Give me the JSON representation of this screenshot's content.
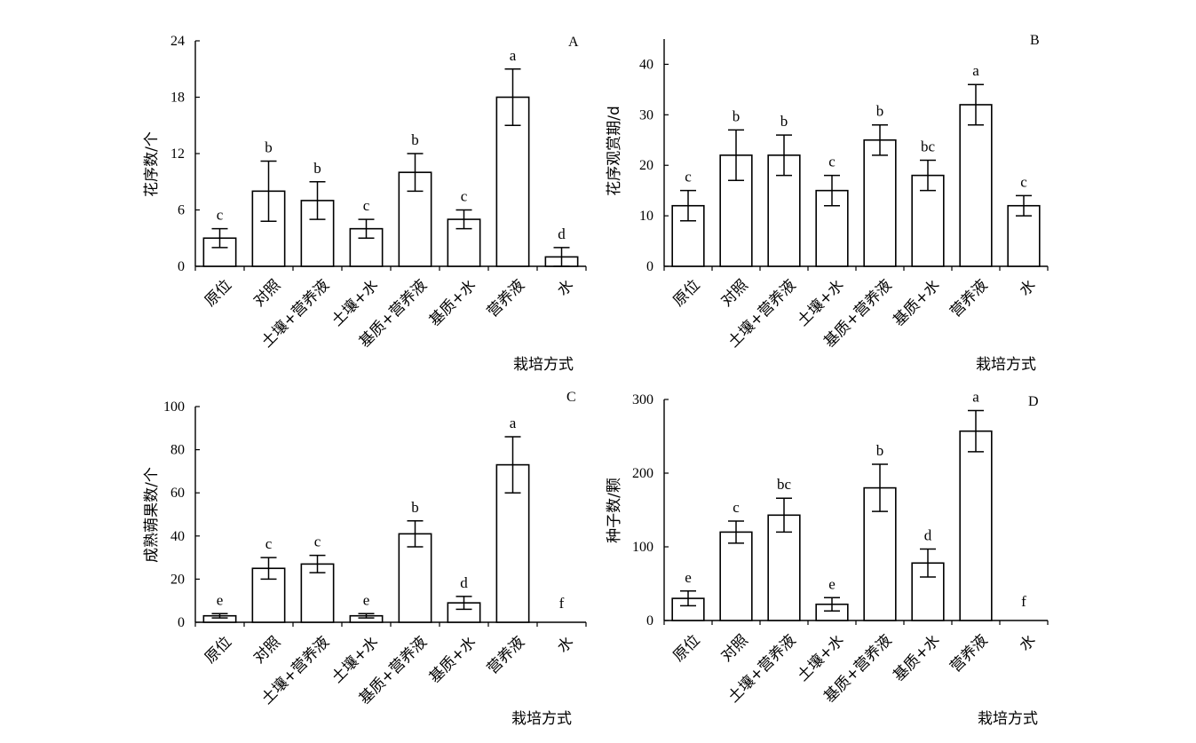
{
  "chart_data": [
    {
      "type": "bar",
      "panel": "A",
      "categories": [
        "原位",
        "对照",
        "土壤+营养液",
        "土壤+水",
        "基质+营养液",
        "基质+水",
        "营养液",
        "水"
      ],
      "values": [
        3,
        8,
        7,
        4,
        10,
        5,
        18,
        1
      ],
      "errors": [
        1,
        3.2,
        2,
        1,
        2,
        1,
        3,
        1
      ],
      "significance": [
        "c",
        "b",
        "b",
        "c",
        "b",
        "c",
        "a",
        "d"
      ],
      "ylabel": "花序数/个",
      "xlabel": "栽培方式",
      "ylim": [
        0,
        24
      ],
      "yticks": [
        0,
        6,
        12,
        18,
        24
      ]
    },
    {
      "type": "bar",
      "panel": "B",
      "categories": [
        "原位",
        "对照",
        "土壤+营养液",
        "土壤+水",
        "基质+营养液",
        "基质+水",
        "营养液",
        "水"
      ],
      "values": [
        12,
        22,
        22,
        15,
        25,
        18,
        32,
        12
      ],
      "errors": [
        3,
        5,
        4,
        3,
        3,
        3,
        4,
        2
      ],
      "significance": [
        "c",
        "b",
        "b",
        "c",
        "b",
        "bc",
        "a",
        "c"
      ],
      "ylabel": "花序观赏期/d",
      "xlabel": "栽培方式",
      "ylim": [
        0,
        45
      ],
      "yticks": [
        0,
        10,
        20,
        30,
        40
      ]
    },
    {
      "type": "bar",
      "panel": "C",
      "categories": [
        "原位",
        "对照",
        "土壤+营养液",
        "土壤+水",
        "基质+营养液",
        "基质+水",
        "营养液",
        "水"
      ],
      "values": [
        3,
        25,
        27,
        3,
        41,
        9,
        73,
        0
      ],
      "errors": [
        1,
        5,
        4,
        1,
        6,
        3,
        13,
        0
      ],
      "significance": [
        "e",
        "c",
        "c",
        "e",
        "b",
        "d",
        "a",
        "f"
      ],
      "ylabel": "成熟蒴果数/个",
      "xlabel": "栽培方式",
      "ylim": [
        0,
        100
      ],
      "yticks": [
        0,
        20,
        40,
        60,
        80,
        100
      ]
    },
    {
      "type": "bar",
      "panel": "D",
      "categories": [
        "原位",
        "对照",
        "土壤+营养液",
        "土壤+水",
        "基质+营养液",
        "基质+水",
        "营养液",
        "水"
      ],
      "values": [
        30,
        120,
        143,
        22,
        180,
        78,
        257,
        0
      ],
      "errors": [
        10,
        15,
        23,
        9,
        32,
        19,
        28,
        0
      ],
      "significance": [
        "e",
        "c",
        "bc",
        "e",
        "b",
        "d",
        "a",
        "f"
      ],
      "ylabel": "种子数/颗",
      "xlabel": "栽培方式",
      "ylim": [
        0,
        300
      ],
      "yticks": [
        0,
        100,
        200,
        300
      ]
    }
  ]
}
